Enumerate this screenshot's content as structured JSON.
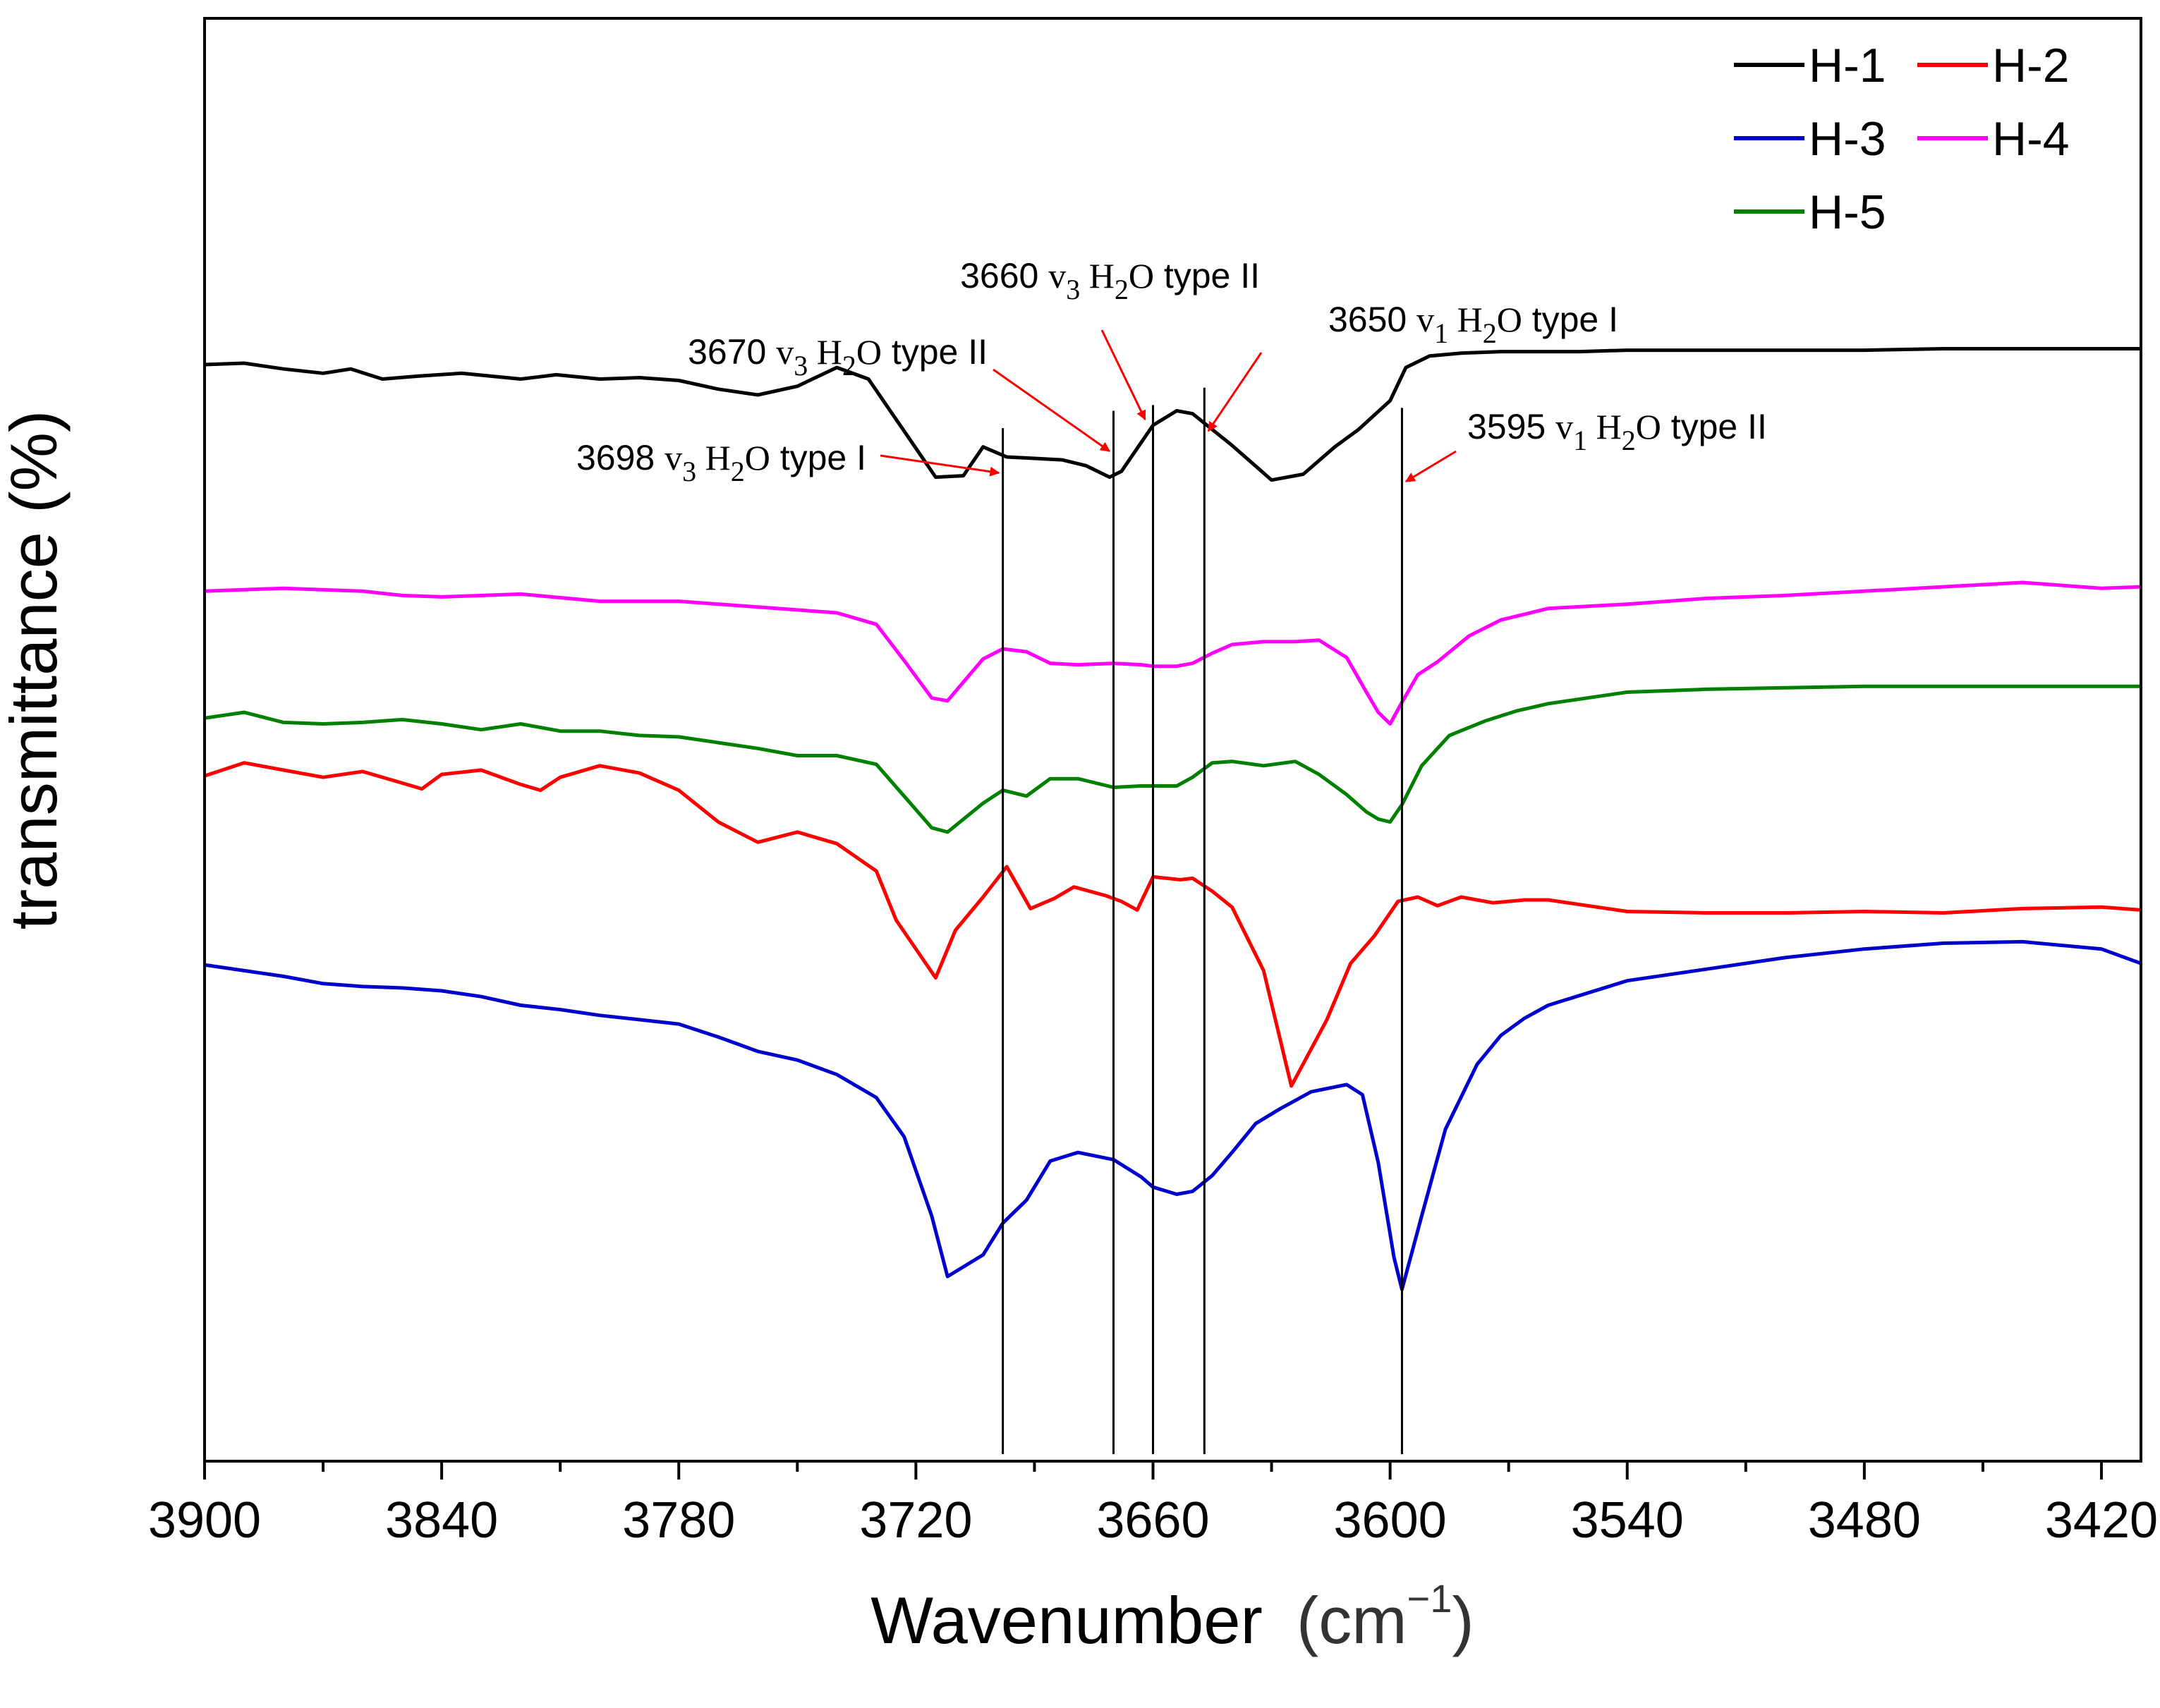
{
  "chart_data": {
    "type": "line",
    "title": "",
    "xlabel": "Wavenumber",
    "xlabel_unit_prefix": "(cm",
    "xlabel_unit_exp": "−1",
    "xlabel_unit_suffix": ")",
    "ylabel": "transmittance (%)",
    "xlim": [
      3900,
      3410
    ],
    "x_reversed": true,
    "ylim": [
      0,
      100
    ],
    "y_ticks_visible": false,
    "x_ticks": [
      3900,
      3840,
      3780,
      3720,
      3660,
      3600,
      3540,
      3480,
      3420
    ],
    "x_tick_labels": [
      "3900",
      "3840",
      "3780",
      "3720",
      "3660",
      "3600",
      "3540",
      "3480",
      "3420"
    ],
    "legend_position": "top-right",
    "series": [
      {
        "name": "H-1",
        "color": "#000000",
        "x": [
          3900,
          3890,
          3880,
          3870,
          3863,
          3855,
          3846,
          3835,
          3820,
          3811,
          3800,
          3790,
          3780,
          3770,
          3760,
          3750,
          3740,
          3732,
          3725,
          3715,
          3708,
          3703,
          3697,
          3690,
          3683,
          3677,
          3671,
          3668,
          3660,
          3654,
          3650,
          3645,
          3640,
          3630,
          3622,
          3614,
          3608,
          3600,
          3596,
          3590,
          3582,
          3572,
          3560,
          3552,
          3540,
          3520,
          3500,
          3480,
          3460,
          3440,
          3420,
          3410
        ],
        "y": [
          76.0,
          76.1,
          75.7,
          75.4,
          75.7,
          75.0,
          75.2,
          75.4,
          75.0,
          75.3,
          75.0,
          75.1,
          74.9,
          74.3,
          73.9,
          74.5,
          75.8,
          75.0,
          72.2,
          68.2,
          68.3,
          70.3,
          69.6,
          69.5,
          69.4,
          69.0,
          68.2,
          68.6,
          71.8,
          72.8,
          72.6,
          71.5,
          70.4,
          68.0,
          68.4,
          70.3,
          71.5,
          73.5,
          75.8,
          76.6,
          76.8,
          76.9,
          76.9,
          76.9,
          77.0,
          77.0,
          77.0,
          77.0,
          77.1,
          77.1,
          77.1,
          77.1
        ]
      },
      {
        "name": "H-2",
        "color": "#ff0000",
        "x": [
          3900,
          3890,
          3880,
          3870,
          3860,
          3850,
          3845,
          3840,
          3830,
          3820,
          3815,
          3810,
          3800,
          3790,
          3780,
          3770,
          3760,
          3750,
          3740,
          3730,
          3725,
          3715,
          3710,
          3703,
          3697,
          3691,
          3685,
          3680,
          3672,
          3668,
          3664,
          3660,
          3653,
          3650,
          3645,
          3640,
          3632,
          3625,
          3616,
          3610,
          3604,
          3598,
          3593,
          3588,
          3582,
          3574,
          3566,
          3560,
          3550,
          3540,
          3520,
          3500,
          3480,
          3460,
          3440,
          3420,
          3410
        ],
        "y": [
          47.5,
          48.4,
          47.9,
          47.4,
          47.8,
          47.0,
          46.6,
          47.6,
          47.9,
          46.9,
          46.5,
          47.4,
          48.2,
          47.7,
          46.5,
          44.3,
          42.9,
          43.6,
          42.8,
          40.9,
          37.5,
          33.5,
          36.8,
          39.1,
          41.2,
          38.3,
          39.0,
          39.8,
          39.2,
          38.8,
          38.2,
          40.5,
          40.3,
          40.4,
          39.5,
          38.4,
          34.0,
          26.0,
          30.6,
          34.5,
          36.4,
          38.8,
          39.1,
          38.5,
          39.1,
          38.7,
          38.9,
          38.9,
          38.5,
          38.1,
          38.0,
          38.0,
          38.1,
          38.0,
          38.3,
          38.4,
          38.2
        ]
      },
      {
        "name": "H-3",
        "color": "#0000cc",
        "x": [
          3900,
          3890,
          3880,
          3870,
          3860,
          3850,
          3840,
          3830,
          3820,
          3810,
          3800,
          3790,
          3780,
          3770,
          3760,
          3750,
          3740,
          3730,
          3723,
          3716,
          3712,
          3703,
          3698,
          3692,
          3686,
          3679,
          3670,
          3663,
          3660,
          3654,
          3650,
          3645,
          3640,
          3634,
          3628,
          3620,
          3611,
          3607,
          3603,
          3599,
          3597,
          3592,
          3586,
          3578,
          3572,
          3566,
          3560,
          3540,
          3520,
          3500,
          3480,
          3460,
          3440,
          3420,
          3410
        ],
        "y": [
          34.4,
          34.0,
          33.6,
          33.1,
          32.9,
          32.8,
          32.6,
          32.2,
          31.6,
          31.3,
          30.9,
          30.6,
          30.3,
          29.4,
          28.4,
          27.8,
          26.8,
          25.2,
          22.5,
          17.0,
          12.8,
          14.3,
          16.5,
          18.1,
          20.8,
          21.4,
          20.9,
          19.7,
          19.0,
          18.5,
          18.7,
          19.8,
          21.4,
          23.4,
          24.4,
          25.6,
          26.1,
          25.4,
          20.7,
          14.1,
          11.9,
          17.0,
          23.0,
          27.5,
          29.5,
          30.7,
          31.6,
          33.3,
          34.1,
          34.9,
          35.5,
          35.9,
          36.0,
          35.5,
          34.5
        ]
      },
      {
        "name": "H-4",
        "color": "#ff00ff",
        "x": [
          3900,
          3880,
          3860,
          3850,
          3840,
          3820,
          3800,
          3780,
          3760,
          3740,
          3730,
          3723,
          3716,
          3712,
          3703,
          3698,
          3692,
          3686,
          3679,
          3670,
          3663,
          3660,
          3654,
          3650,
          3645,
          3640,
          3632,
          3624,
          3618,
          3611,
          3606,
          3603,
          3600,
          3597,
          3593,
          3588,
          3580,
          3572,
          3560,
          3540,
          3520,
          3500,
          3480,
          3460,
          3440,
          3420,
          3410
        ],
        "y": [
          60.3,
          60.5,
          60.3,
          60.0,
          59.9,
          60.1,
          59.6,
          59.6,
          59.2,
          58.8,
          58.0,
          55.5,
          52.9,
          52.7,
          55.6,
          56.3,
          56.1,
          55.3,
          55.2,
          55.3,
          55.2,
          55.1,
          55.1,
          55.3,
          56.0,
          56.6,
          56.8,
          56.8,
          56.9,
          55.7,
          53.3,
          51.9,
          51.1,
          52.6,
          54.5,
          55.4,
          57.2,
          58.3,
          59.1,
          59.4,
          59.8,
          60.0,
          60.3,
          60.6,
          60.9,
          60.5,
          60.6
        ]
      },
      {
        "name": "H-5",
        "color": "#008000",
        "x": [
          3900,
          3890,
          3880,
          3870,
          3860,
          3850,
          3840,
          3830,
          3820,
          3810,
          3800,
          3790,
          3780,
          3770,
          3760,
          3750,
          3740,
          3730,
          3723,
          3716,
          3712,
          3703,
          3698,
          3692,
          3686,
          3679,
          3670,
          3663,
          3660,
          3654,
          3650,
          3645,
          3640,
          3632,
          3624,
          3618,
          3611,
          3606,
          3603,
          3600,
          3597,
          3592,
          3585,
          3576,
          3568,
          3560,
          3540,
          3520,
          3500,
          3480,
          3460,
          3440,
          3420,
          3410
        ],
        "y": [
          51.5,
          51.9,
          51.2,
          51.1,
          51.2,
          51.4,
          51.1,
          50.7,
          51.1,
          50.6,
          50.6,
          50.3,
          50.2,
          49.8,
          49.4,
          48.9,
          48.9,
          48.3,
          46.1,
          43.9,
          43.6,
          45.6,
          46.5,
          46.1,
          47.3,
          47.3,
          46.7,
          46.8,
          46.8,
          46.8,
          47.4,
          48.4,
          48.5,
          48.2,
          48.5,
          47.6,
          46.2,
          45.0,
          44.5,
          44.3,
          45.5,
          48.2,
          50.3,
          51.3,
          52.0,
          52.5,
          53.3,
          53.5,
          53.6,
          53.7,
          53.7,
          53.7,
          53.7,
          53.7
        ]
      }
    ],
    "marker_lines": [
      {
        "x": 3698,
        "y_top": 71.6
      },
      {
        "x": 3670,
        "y_top": 72.8
      },
      {
        "x": 3660,
        "y_top": 73.2
      },
      {
        "x": 3647,
        "y_top": 74.4
      },
      {
        "x": 3597,
        "y_top": 73.0
      }
    ],
    "annotations": [
      {
        "wavenumber": "3698",
        "mode": "v",
        "mode_sub": "3",
        "species": "H",
        "species_sub": "2",
        "species_tail": "O",
        "type": "type I",
        "arrow_to_x": 3699,
        "arrow_to_y": 68.5
      },
      {
        "wavenumber": "3670",
        "mode": "v",
        "mode_sub": "3",
        "species": "H",
        "species_sub": "2",
        "species_tail": "O",
        "type": "type II",
        "arrow_to_x": 3671,
        "arrow_to_y": 70.0
      },
      {
        "wavenumber": "3660",
        "mode": "v",
        "mode_sub": "3",
        "species": "H",
        "species_sub": "2",
        "species_tail": "O",
        "type": "type II",
        "arrow_to_x": 3662,
        "arrow_to_y": 72.2
      },
      {
        "wavenumber": "3650",
        "mode": "v",
        "mode_sub": "1",
        "species": "H",
        "species_sub": "2",
        "species_tail": "O",
        "type": "type I",
        "arrow_to_x": 3646,
        "arrow_to_y": 71.4
      },
      {
        "wavenumber": "3595",
        "mode": "v",
        "mode_sub": "1",
        "species": "H",
        "species_sub": "2",
        "species_tail": "O",
        "type": "type II",
        "arrow_to_x": 3596,
        "arrow_to_y": 67.9
      }
    ],
    "annotation_arrow_color": "#ff0000"
  }
}
